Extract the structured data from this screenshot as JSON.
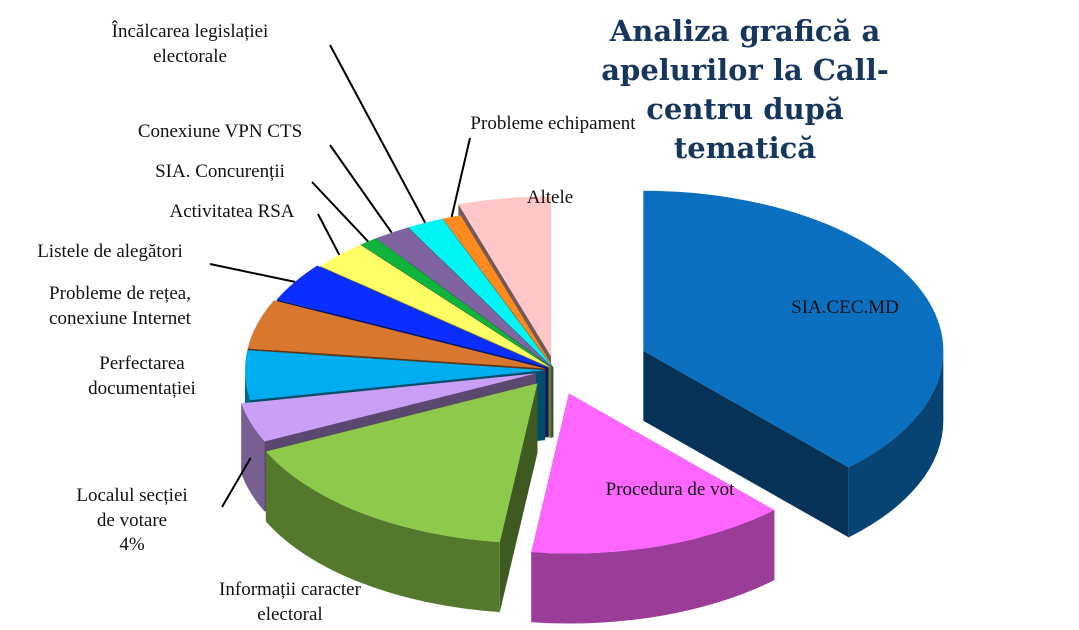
{
  "chart_data": {
    "type": "pie3d",
    "title": "Analiza grafică a\napelurilor la Call-centru după tematică",
    "categories": [
      "SIA.CEC.MD",
      "Procedura de vot",
      "Informații caracter\nelectoral",
      "Localul secției\nde votare",
      "Perfectarea\ndocumentației",
      "Probleme de rețea,\nconexiune Internet",
      "Listele de alegători",
      "Activitatea RSA",
      "SIA. Concurenții",
      "Conexiune VPN CTS",
      "Încălcarea legislației\nelectorale",
      "Probleme echipament",
      "Altele"
    ],
    "values": [
      38,
      14,
      16,
      4,
      5,
      5,
      4,
      3,
      1,
      2,
      2,
      1,
      5
    ],
    "value_labels": [
      null,
      null,
      null,
      "4%",
      null,
      null,
      null,
      null,
      null,
      null,
      null,
      null,
      null
    ],
    "colors": [
      "#0b6fc0",
      "#ff66ff",
      "#8dc94a",
      "#c9a0f5",
      "#00aeef",
      "#d9772e",
      "#0a2eff",
      "#ffff66",
      "#0fb43c",
      "#8064a2",
      "#00f5f5",
      "#ff8a1f",
      "#ffc7c7"
    ]
  }
}
